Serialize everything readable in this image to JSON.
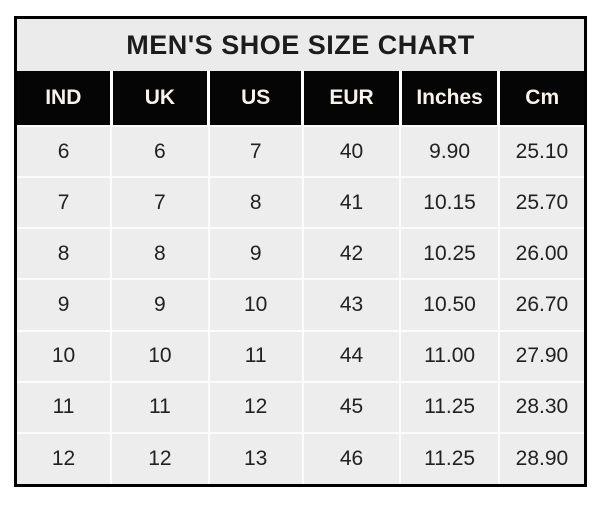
{
  "page_title": "MEN'S SHOE SIZE CHART",
  "chart_data": {
    "type": "table",
    "title": "MEN'S SHOE SIZE CHART",
    "columns": [
      "IND",
      "UK",
      "US",
      "EUR",
      "Inches",
      "Cm"
    ],
    "rows": [
      [
        "6",
        "6",
        "7",
        "40",
        "9.90",
        "25.10"
      ],
      [
        "7",
        "7",
        "8",
        "41",
        "10.15",
        "25.70"
      ],
      [
        "8",
        "8",
        "9",
        "42",
        "10.25",
        "26.00"
      ],
      [
        "9",
        "9",
        "10",
        "43",
        "10.50",
        "26.70"
      ],
      [
        "10",
        "10",
        "11",
        "44",
        "11.00",
        "27.90"
      ],
      [
        "11",
        "11",
        "12",
        "45",
        "11.25",
        "28.30"
      ],
      [
        "12",
        "12",
        "13",
        "46",
        "11.25",
        "28.90"
      ]
    ],
    "layout": {
      "legend": "none",
      "grid": "white gridlines between gray cells"
    }
  },
  "colors": {
    "outer_border": "#000000",
    "title_bg": "#ebebeb",
    "title_text": "#1c1c1c",
    "header_bg": "#050505",
    "header_text": "#f7f3ec",
    "cell_bg": "#ededed",
    "grid_line": "#fbfbfb",
    "cell_text": "#212121",
    "page_bg": "#ffffff"
  }
}
